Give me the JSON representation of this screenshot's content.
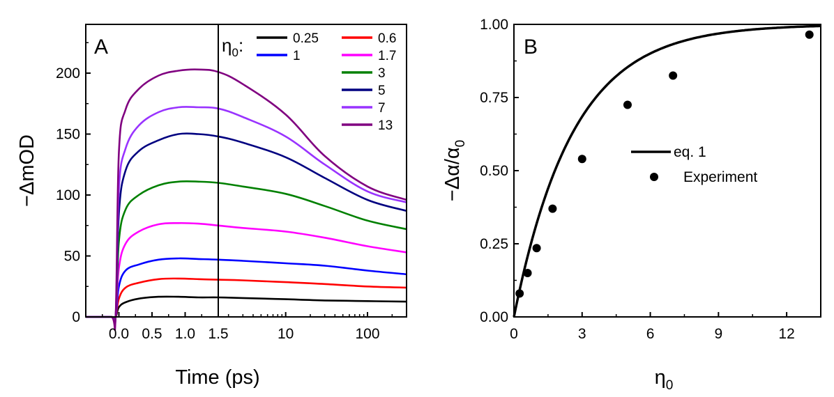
{
  "chart_data": [
    {
      "panel": "A",
      "type": "line",
      "title": "",
      "panel_label": "A",
      "xlabel": "Time (ps)",
      "ylabel": "−ΔmOD",
      "ylim": [
        0,
        240
      ],
      "x_scale": "linear-log (linear from -0.5 to 1.5 ps, logarithmic from 1.5 to 300 ps)",
      "xlim": [
        -0.5,
        300
      ],
      "break_at": 1.5,
      "xticks": [
        0.0,
        0.5,
        1.0,
        1.5,
        10,
        100
      ],
      "xtick_labels": [
        "0.0",
        "0.5",
        "1.0",
        "1.5",
        "10",
        "100"
      ],
      "yticks": [
        0,
        50,
        100,
        150,
        200
      ],
      "ytick_labels": [
        "0",
        "50",
        "100",
        "150",
        "200"
      ],
      "legend_title": "η",
      "legend_title_sub": "0",
      "legend_title_suffix": ":",
      "series": [
        {
          "name": "0.25",
          "color": "#000000",
          "x": [
            -0.5,
            -0.12,
            -0.05,
            0.0,
            0.1,
            0.3,
            0.6,
            0.9,
            1.2,
            1.5,
            3,
            10,
            30,
            100,
            300
          ],
          "values": [
            0,
            0,
            0,
            8,
            12,
            15,
            16.5,
            16.5,
            16,
            16,
            15.5,
            14.5,
            13.5,
            13,
            12.5
          ]
        },
        {
          "name": "0.6",
          "color": "#ff0000",
          "x": [
            -0.5,
            -0.12,
            -0.05,
            0.0,
            0.1,
            0.3,
            0.6,
            0.9,
            1.2,
            1.5,
            3,
            10,
            30,
            100,
            300
          ],
          "values": [
            0,
            0,
            0,
            15,
            24,
            28,
            31,
            31.5,
            31,
            30.5,
            30,
            28.5,
            27,
            25,
            24
          ]
        },
        {
          "name": "1",
          "color": "#0000ff",
          "x": [
            -0.5,
            -0.12,
            -0.05,
            0.0,
            0.1,
            0.3,
            0.6,
            0.9,
            1.2,
            1.5,
            3,
            10,
            30,
            100,
            300
          ],
          "values": [
            0,
            0,
            0,
            25,
            38,
            43,
            47,
            48,
            47.5,
            47,
            46,
            44,
            42,
            38,
            35
          ]
        },
        {
          "name": "1.7",
          "color": "#ff00ff",
          "x": [
            -0.5,
            -0.12,
            -0.05,
            0.0,
            0.1,
            0.3,
            0.6,
            0.9,
            1.2,
            1.5,
            3,
            10,
            30,
            100,
            300
          ],
          "values": [
            0,
            0,
            0,
            40,
            60,
            70,
            76,
            77,
            76.5,
            75,
            73,
            70,
            65,
            58,
            53
          ]
        },
        {
          "name": "3",
          "color": "#008000",
          "x": [
            -0.5,
            -0.12,
            -0.05,
            0.0,
            0.1,
            0.3,
            0.6,
            0.9,
            1.2,
            1.5,
            3,
            10,
            30,
            100,
            300
          ],
          "values": [
            0,
            0,
            0,
            62,
            88,
            100,
            108,
            111,
            111,
            110,
            107,
            101,
            91,
            79,
            72
          ]
        },
        {
          "name": "5",
          "color": "#000080",
          "x": [
            -0.5,
            -0.12,
            -0.05,
            0.0,
            0.1,
            0.3,
            0.6,
            0.9,
            1.2,
            1.5,
            3,
            10,
            30,
            100,
            300
          ],
          "values": [
            0,
            0,
            0,
            85,
            120,
            136,
            145,
            150,
            150,
            148,
            143,
            131,
            114,
            96,
            87
          ]
        },
        {
          "name": "7",
          "color": "#9933ff",
          "x": [
            -0.5,
            -0.12,
            -0.05,
            0.0,
            0.1,
            0.3,
            0.6,
            0.9,
            1.2,
            1.5,
            3,
            10,
            30,
            100,
            300
          ],
          "values": [
            0,
            0,
            0,
            105,
            138,
            157,
            168,
            172,
            172,
            171,
            164,
            148,
            125,
            103,
            94
          ]
        },
        {
          "name": "13",
          "color": "#800080",
          "x": [
            -0.5,
            -0.12,
            -0.05,
            0.0,
            0.1,
            0.3,
            0.6,
            0.9,
            1.2,
            1.5,
            3,
            10,
            30,
            100,
            300
          ],
          "values": [
            0,
            0,
            0,
            135,
            170,
            187,
            198,
            202,
            203,
            201,
            191,
            166,
            132,
            107,
            96
          ]
        }
      ]
    },
    {
      "panel": "B",
      "type": "line+scatter",
      "title": "",
      "panel_label": "B",
      "xlabel": "η",
      "xlabel_sub": "0",
      "ylabel": "−Δα/α",
      "ylabel_sub": "0",
      "xlim": [
        0,
        13.5
      ],
      "ylim": [
        0,
        1.0
      ],
      "xticks": [
        0,
        3,
        6,
        9,
        12
      ],
      "xtick_labels": [
        "0",
        "3",
        "6",
        "9",
        "12"
      ],
      "yticks": [
        0,
        0.25,
        0.5,
        0.75,
        1.0
      ],
      "ytick_labels": [
        "0.00",
        "0.25",
        "0.50",
        "0.75",
        "1.00"
      ],
      "series": [
        {
          "name": "eq. 1",
          "style": "line",
          "color": "#000000",
          "model": "1 - exp(-eta0/2.6)",
          "decay_constant": 2.6
        },
        {
          "name": "Experiment",
          "style": "scatter",
          "color": "#000000",
          "x": [
            0.25,
            0.6,
            1.0,
            1.7,
            3.0,
            5.0,
            7.0,
            13.0
          ],
          "values": [
            0.08,
            0.15,
            0.235,
            0.37,
            0.54,
            0.725,
            0.825,
            0.965
          ]
        }
      ]
    }
  ]
}
